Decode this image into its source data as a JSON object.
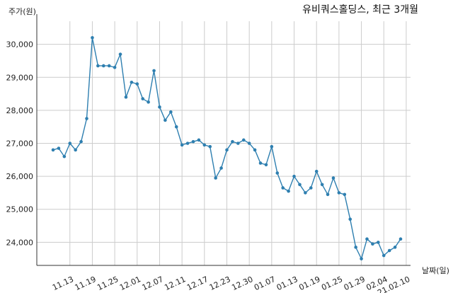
{
  "chart_data": {
    "type": "line",
    "title": "유비쿼스홀딩스, 최근 3개월",
    "ylabel": "주가(원)",
    "xlabel": "날짜(일)",
    "ylim": [
      23300,
      30700
    ],
    "yticks": [
      24000,
      25000,
      26000,
      27000,
      28000,
      29000,
      30000
    ],
    "ytick_labels": [
      "24,000",
      "25,000",
      "26,000",
      "27,000",
      "28,000",
      "29,000",
      "30,000"
    ],
    "xtick_labels": [
      "11.13",
      "11.19",
      "11.25",
      "12.01",
      "12.07",
      "12.11",
      "12.17",
      "12.23",
      "12.30",
      "01.07",
      "01.13",
      "01.19",
      "01.25",
      "01.29",
      "02.04",
      "21.02.10"
    ],
    "xtick_index": [
      3,
      7,
      11,
      15,
      19,
      23,
      27,
      31,
      35,
      39,
      43,
      47,
      51,
      55,
      59,
      63
    ],
    "grid": true,
    "line_color": "#2e7fb0",
    "series": [
      {
        "values": [
          26800,
          26850,
          26600,
          27000,
          26800,
          27050,
          27750,
          30200,
          29350,
          29350,
          29350,
          29300,
          29700,
          28400,
          28850,
          28800,
          28350,
          28250,
          29200,
          28100,
          27700,
          27950,
          27500,
          26950,
          27000,
          27050,
          27100,
          26950,
          26900,
          25950,
          26250,
          26800,
          27050,
          27000,
          27100,
          27000,
          26800,
          26400,
          26350,
          26900,
          26100,
          25650,
          25550,
          26000,
          25750,
          25500,
          25650,
          26150,
          25750,
          25450,
          25950,
          25500,
          25450,
          24700,
          23850,
          23500,
          24100,
          23950,
          24000,
          23600,
          23750,
          23850,
          24100
        ]
      }
    ]
  }
}
